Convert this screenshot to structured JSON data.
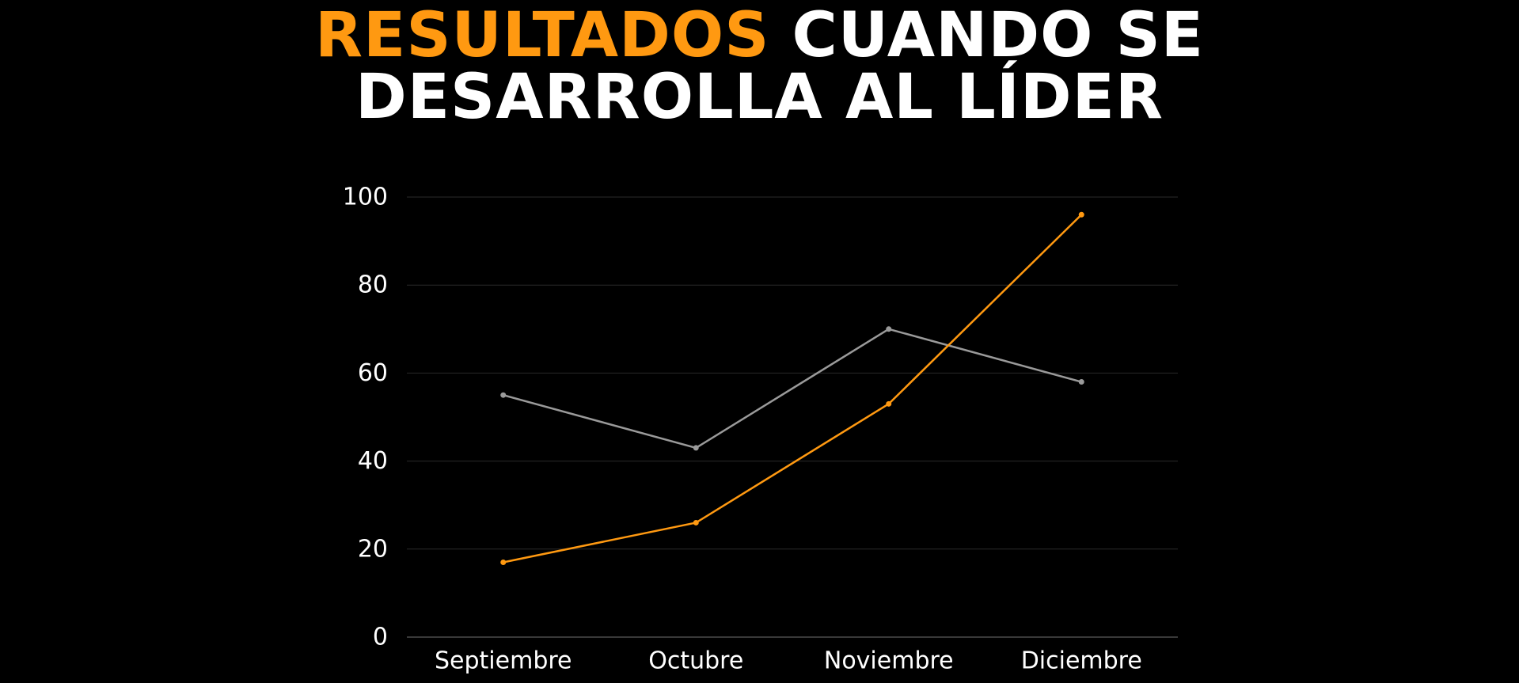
{
  "title": {
    "accent": "RESULTADOS",
    "line1_rest": " CUANDO SE",
    "line2": "DESARROLLA AL LÍDER"
  },
  "colors": {
    "background": "#000000",
    "accent": "#ff9911",
    "gray_series": "#9a9a9a",
    "grid": "#2a2a2a",
    "text": "#ffffff"
  },
  "chart_data": {
    "type": "line",
    "title": "RESULTADOS CUANDO SE DESARROLLA AL LÍDER",
    "categories": [
      "Septiembre",
      "Octubre",
      "Noviembre",
      "Diciembre"
    ],
    "series": [
      {
        "color": "#9a9a9a",
        "values": [
          55,
          43,
          70,
          58
        ]
      },
      {
        "color": "#ff9911",
        "values": [
          17,
          26,
          53,
          96
        ]
      }
    ],
    "yticks": [
      0,
      20,
      40,
      60,
      80,
      100
    ],
    "ylim": [
      0,
      100
    ],
    "grid": true,
    "legend": "none"
  }
}
